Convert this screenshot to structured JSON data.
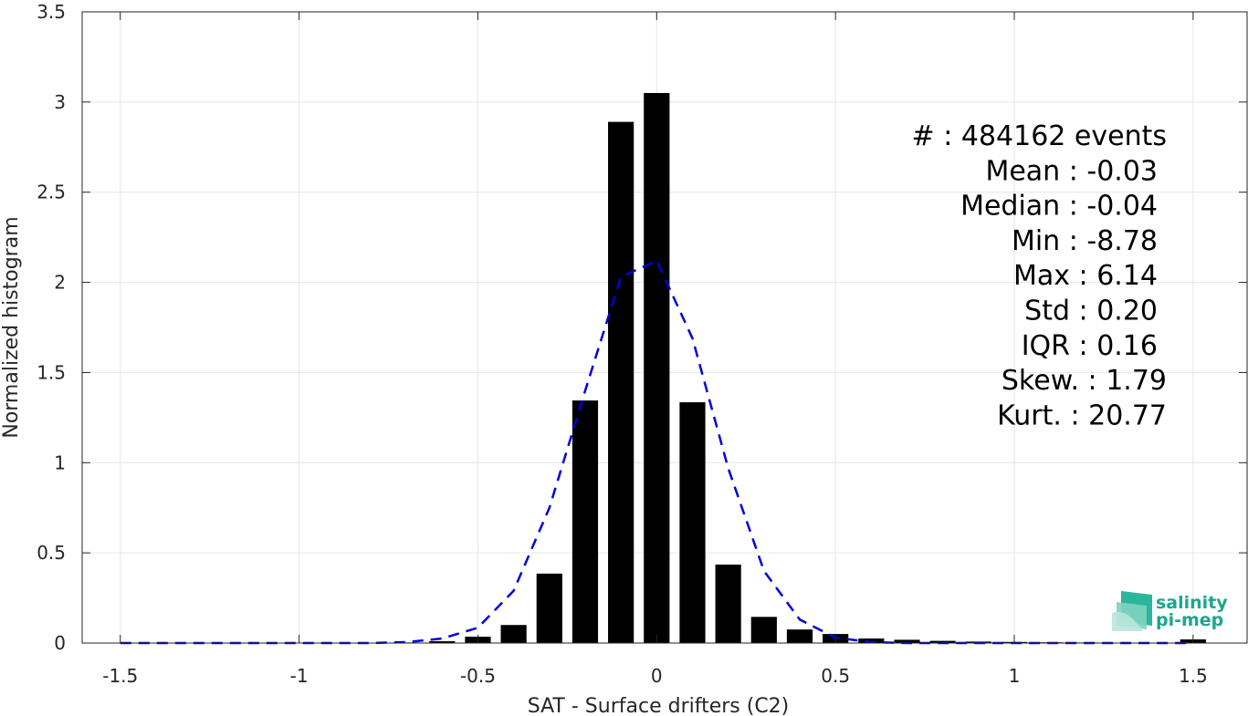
{
  "chart_data": {
    "type": "bar",
    "xlabel": "SAT - Surface drifters (C2)",
    "ylabel": "Normalized histogram",
    "xlim": [
      -1.55,
      1.6
    ],
    "ylim": [
      0,
      3.5
    ],
    "xticks": [
      -1.5,
      -1,
      -0.5,
      0,
      0.5,
      1,
      1.5
    ],
    "xtick_labels": [
      "-1.5",
      "-1",
      "-0.5",
      "0",
      "0.5",
      "1",
      "1.5"
    ],
    "yticks": [
      0,
      0.5,
      1,
      1.5,
      2,
      2.5,
      3,
      3.5
    ],
    "ytick_labels": [
      "0",
      "0.5",
      "1",
      "1.5",
      "2",
      "2.5",
      "3",
      "3.5"
    ],
    "grid": true,
    "bar_color": "#000000",
    "bars": {
      "x": [
        -1.5,
        -1.4,
        -1.3,
        -1.2,
        -1.1,
        -1.0,
        -0.9,
        -0.8,
        -0.7,
        -0.6,
        -0.5,
        -0.4,
        -0.3,
        -0.2,
        -0.1,
        0.0,
        0.1,
        0.2,
        0.3,
        0.4,
        0.5,
        0.6,
        0.7,
        0.8,
        0.9,
        1.0,
        1.1,
        1.2,
        1.3,
        1.4,
        1.5
      ],
      "values": [
        0.002,
        0.001,
        0.001,
        0.001,
        0.001,
        0.001,
        0.001,
        0.002,
        0.003,
        0.01,
        0.035,
        0.1,
        0.385,
        1.345,
        2.89,
        3.05,
        1.335,
        0.435,
        0.145,
        0.075,
        0.05,
        0.025,
        0.018,
        0.012,
        0.008,
        0.006,
        0.004,
        0.003,
        0.002,
        0.002,
        0.02
      ]
    },
    "fit": {
      "name": "",
      "color": "#0000dd",
      "style": "dashed",
      "x": [
        -1.5,
        -1.4,
        -1.3,
        -1.2,
        -1.1,
        -1.0,
        -0.9,
        -0.8,
        -0.7,
        -0.6,
        -0.5,
        -0.4,
        -0.3,
        -0.2,
        -0.1,
        0.0,
        0.1,
        0.2,
        0.3,
        0.4,
        0.5,
        0.6,
        0.7,
        0.8,
        0.9,
        1.0,
        1.1,
        1.2,
        1.3,
        1.4,
        1.5
      ],
      "values": [
        0,
        0,
        0,
        0,
        0,
        0,
        0,
        0,
        0.005,
        0.025,
        0.085,
        0.29,
        0.75,
        1.4,
        2.03,
        2.12,
        1.69,
        0.97,
        0.4,
        0.13,
        0.03,
        0.005,
        0,
        0,
        0,
        0,
        0,
        0,
        0,
        0,
        0
      ]
    },
    "stats": [
      "#  : 484162 events",
      "Mean : -0.03",
      "Median : -0.04",
      "Min : -8.78",
      "Max : 6.14",
      "Std : 0.20",
      "IQR : 0.16",
      "Skew. : 1.79",
      "Kurt. : 20.77"
    ]
  },
  "logo": {
    "line1": "salinity",
    "line2": "pi-mep",
    "color": "#1aa78f"
  }
}
